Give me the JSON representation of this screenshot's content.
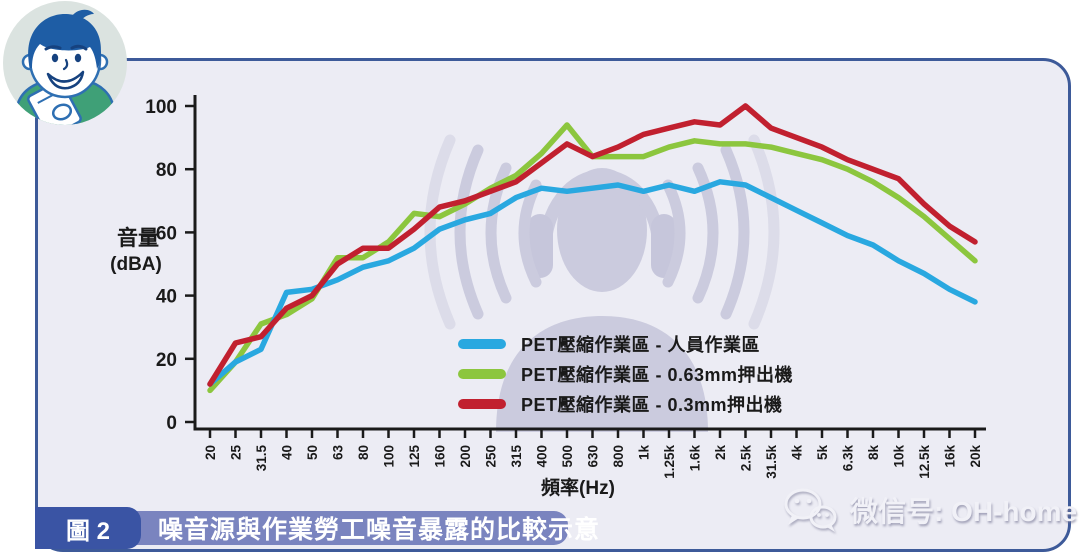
{
  "figure": {
    "badge": "圖 2",
    "title": "噪音源與作業勞工噪音暴露的比較示意"
  },
  "footer": {
    "wechat_label": "微信号: OH-home"
  },
  "icons": {
    "mascot": "clipboard-person-mascot",
    "watermark": "worker-wearing-headphones-icon",
    "wechat": "wechat-icon"
  },
  "colors": {
    "panel_background": "#ECECF4",
    "panel_border": "#3D5A99",
    "caption_bar": "#7A84BF",
    "caption_badge": "#3A54A4",
    "watermark": "#CBCBDE",
    "axis": "#1A1A1A",
    "series_blue": "#29A8E0",
    "series_green": "#8CC63E",
    "series_red": "#C1202F"
  },
  "chart_data": {
    "type": "line",
    "title": "",
    "xlabel": "頻率(Hz)",
    "ylabel": "音量 (dBA)",
    "ylabel_lines": [
      "音量",
      "(dBA)"
    ],
    "ylim": [
      0,
      100
    ],
    "yticks": [
      0,
      20,
      40,
      60,
      80,
      100
    ],
    "grid": false,
    "legend_position": "inside-bottom-center",
    "categories": [
      "20",
      "25",
      "31.5",
      "40",
      "50",
      "63",
      "80",
      "100",
      "125",
      "160",
      "200",
      "250",
      "315",
      "400",
      "500",
      "630",
      "800",
      "1k",
      "1.25k",
      "1.6k",
      "2k",
      "2.5k",
      "31.5k",
      "4k",
      "5k",
      "6.3k",
      "8k",
      "10k",
      "12.5k",
      "16k",
      "20k"
    ],
    "series": [
      {
        "name": "PET壓縮作業區 - 人員作業區",
        "color": "#29A8E0",
        "values": [
          12,
          19,
          23,
          41,
          42,
          45,
          49,
          51,
          55,
          61,
          64,
          66,
          71,
          74,
          73,
          74,
          75,
          73,
          75,
          73,
          76,
          75,
          71,
          67,
          63,
          59,
          56,
          51,
          47,
          42,
          38
        ]
      },
      {
        "name": "PET壓縮作業區 - 0.63mm押出機",
        "color": "#8CC63E",
        "values": [
          10,
          19,
          31,
          34,
          39,
          52,
          52,
          57,
          66,
          65,
          69,
          74,
          78,
          85,
          94,
          84,
          84,
          84,
          87,
          89,
          88,
          88,
          87,
          85,
          83,
          80,
          76,
          71,
          65,
          58,
          51
        ]
      },
      {
        "name": "PET壓縮作業區 - 0.3mm押出機",
        "color": "#C1202F",
        "values": [
          12,
          25,
          27,
          36,
          40,
          50,
          55,
          55,
          61,
          68,
          70,
          73,
          76,
          82,
          88,
          84,
          87,
          91,
          93,
          95,
          94,
          100,
          93,
          90,
          87,
          83,
          80,
          77,
          69,
          62,
          57
        ]
      }
    ]
  }
}
